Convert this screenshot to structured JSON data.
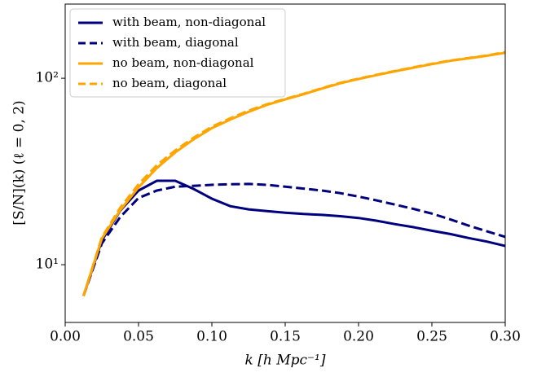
{
  "chart_data": {
    "type": "line",
    "xlabel": "k [h Mpc⁻¹]",
    "ylabel": "[S/N](k) (ℓ = 0, 2)",
    "x": [
      0.0125,
      0.025,
      0.0375,
      0.05,
      0.0625,
      0.075,
      0.0875,
      0.1,
      0.1125,
      0.125,
      0.1375,
      0.15,
      0.1625,
      0.175,
      0.1875,
      0.2,
      0.2125,
      0.225,
      0.2375,
      0.25,
      0.2625,
      0.275,
      0.2875,
      0.3
    ],
    "series": [
      {
        "name": "with beam, non-diagonal",
        "color": "#00007f",
        "linestyle": "solid",
        "values": [
          6.8,
          13.5,
          19.5,
          25,
          28.2,
          28.2,
          25.5,
          22.6,
          20.6,
          19.8,
          19.4,
          19.0,
          18.7,
          18.5,
          18.2,
          17.8,
          17.2,
          16.5,
          15.9,
          15.2,
          14.6,
          13.9,
          13.3,
          12.6
        ]
      },
      {
        "name": "with beam, diagonal",
        "color": "#00007f",
        "linestyle": "dashed",
        "values": [
          6.8,
          13,
          18,
          22.8,
          25,
          26.2,
          26.5,
          26.8,
          27,
          27.1,
          26.8,
          26.2,
          25.6,
          25,
          24.2,
          23.2,
          22.1,
          21,
          19.9,
          18.8,
          17.5,
          16.2,
          15.1,
          14.1
        ]
      },
      {
        "name": "no beam, non-diagonal",
        "color": "#ffa500",
        "linestyle": "solid",
        "values": [
          6.8,
          13.8,
          19.6,
          26,
          33,
          40,
          47,
          54,
          60,
          66,
          72,
          77,
          82,
          88,
          94,
          99,
          104,
          109,
          114,
          119,
          124,
          128,
          132,
          137
        ]
      },
      {
        "name": "no beam, diagonal",
        "color": "#ffa500",
        "linestyle": "dashed",
        "values": [
          6.8,
          14,
          20.2,
          27,
          34.2,
          41,
          48,
          55,
          61,
          67,
          72.5,
          77.5,
          82.5,
          88.5,
          94.5,
          99.5,
          104.5,
          109.5,
          114.5,
          119.5,
          124.5,
          128.5,
          132.5,
          138
        ]
      }
    ],
    "xlim": [
      0,
      0.3
    ],
    "xticks": [
      {
        "value": 0,
        "label": "0.00"
      },
      0.05,
      {
        "value": 0.1,
        "label": "0.10"
      },
      0.15,
      {
        "value": 0.2,
        "label": "0.20"
      },
      0.25,
      {
        "value": 0.3,
        "label": "0.30"
      }
    ],
    "ylim": [
      4.9,
      250
    ],
    "yscale": "log",
    "yticks": [
      {
        "value": 10,
        "label": "10¹"
      },
      {
        "value": 100,
        "label": "10²"
      }
    ],
    "legend": "upper left"
  }
}
